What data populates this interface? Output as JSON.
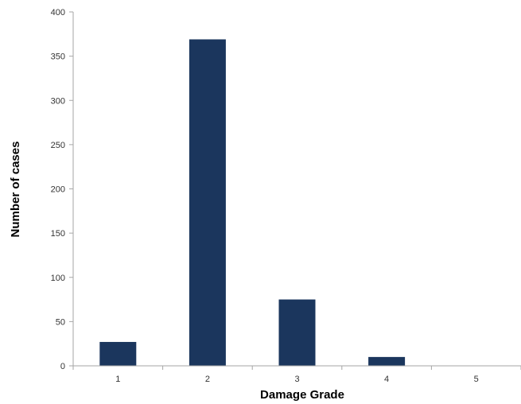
{
  "chart_data": {
    "type": "bar",
    "title": "",
    "xlabel": "Damage Grade",
    "ylabel": "Number of cases",
    "categories": [
      "1",
      "2",
      "3",
      "4",
      "5"
    ],
    "values": [
      27,
      369,
      75,
      10,
      0
    ],
    "ylim": [
      0,
      400
    ],
    "yticks": [
      0,
      50,
      100,
      150,
      200,
      250,
      300,
      350,
      400
    ],
    "bar_color": "#1b365d",
    "axis_color": "#a6a6a6",
    "grid": false,
    "legend": "none"
  }
}
